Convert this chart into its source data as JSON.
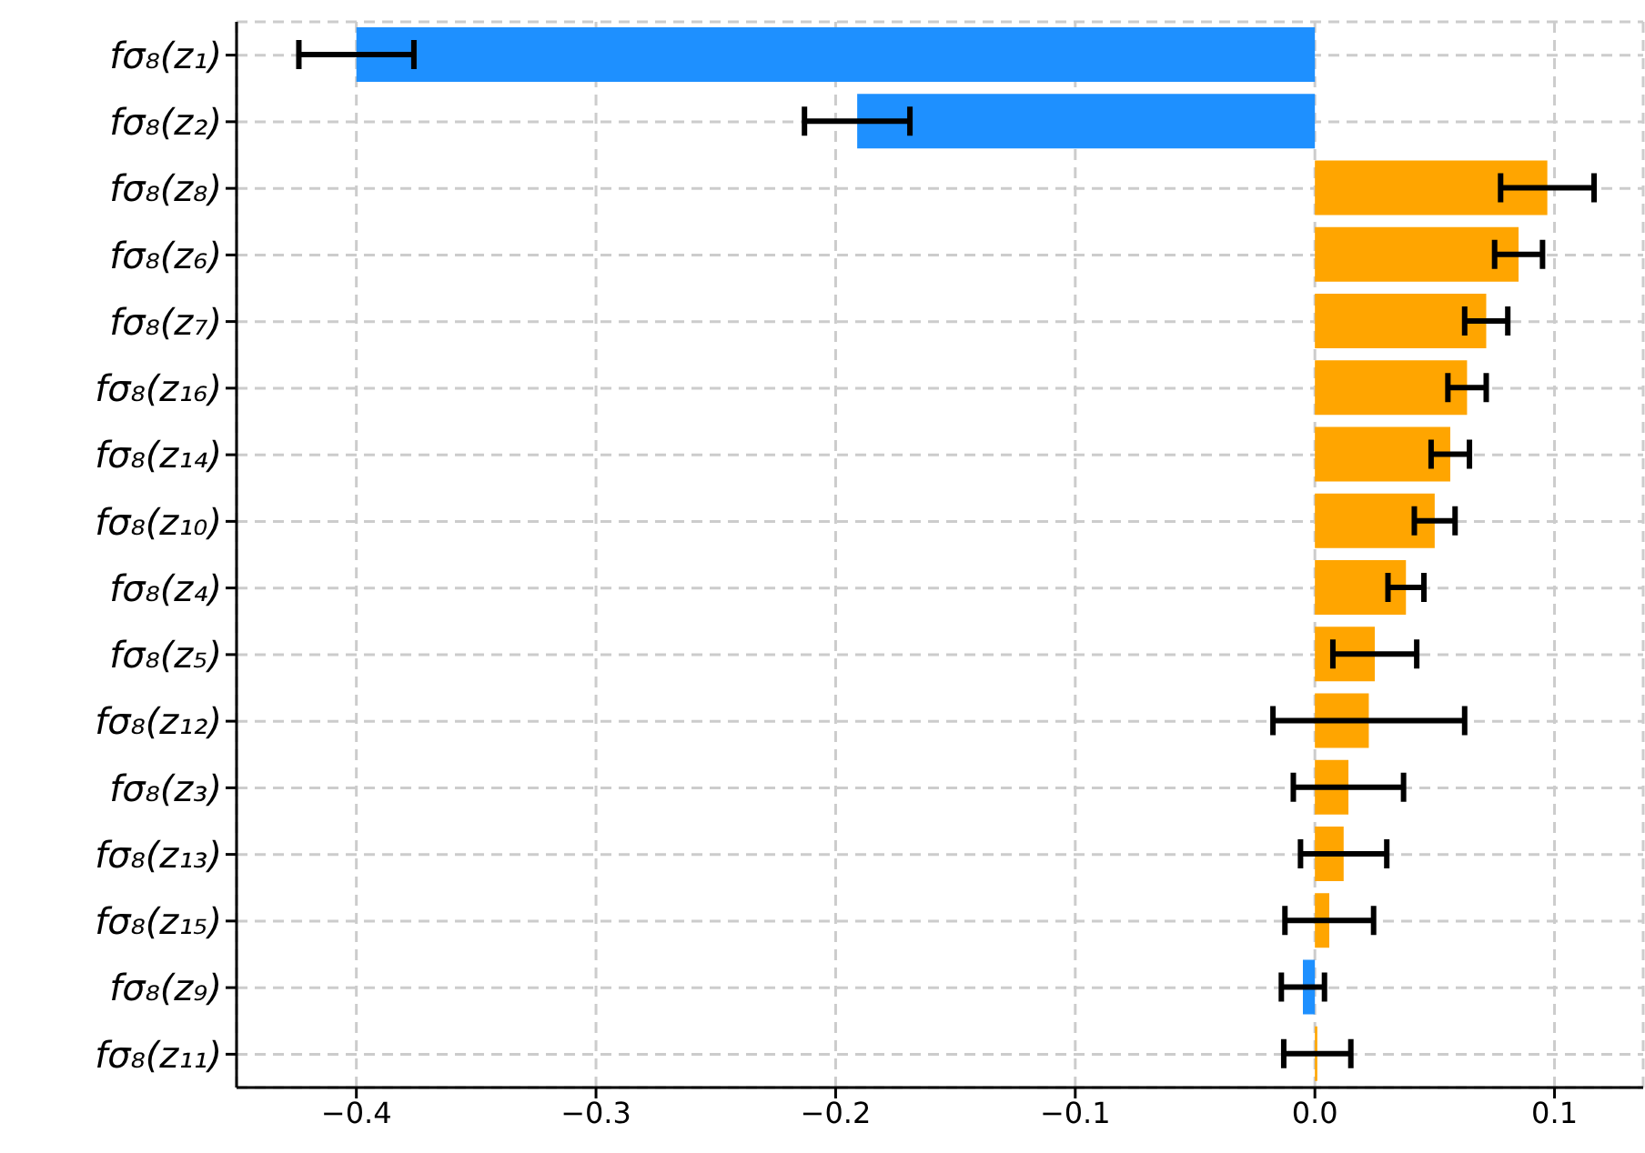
{
  "chart_data": {
    "type": "bar",
    "orientation": "horizontal",
    "categories": [
      "fσ₈(z₁)",
      "fσ₈(z₂)",
      "fσ₈(z₈)",
      "fσ₈(z₆)",
      "fσ₈(z₇)",
      "fσ₈(z₁₆)",
      "fσ₈(z₁₄)",
      "fσ₈(z₁₀)",
      "fσ₈(z₄)",
      "fσ₈(z₅)",
      "fσ₈(z₁₂)",
      "fσ₈(z₃)",
      "fσ₈(z₁₃)",
      "fσ₈(z₁₅)",
      "fσ₈(z₉)",
      "fσ₈(z₁₁)"
    ],
    "values": [
      -0.4,
      -0.191,
      0.097,
      0.085,
      0.0715,
      0.0635,
      0.0565,
      0.05,
      0.038,
      0.025,
      0.0225,
      0.014,
      0.012,
      0.006,
      -0.005,
      0.001
    ],
    "errors": [
      0.024,
      0.022,
      0.0195,
      0.01,
      0.009,
      0.008,
      0.008,
      0.0085,
      0.0075,
      0.0175,
      0.04,
      0.023,
      0.018,
      0.0185,
      0.009,
      0.014
    ],
    "colors": [
      "#1e90ff",
      "#1e90ff",
      "#ffa500",
      "#ffa500",
      "#ffa500",
      "#ffa500",
      "#ffa500",
      "#ffa500",
      "#ffa500",
      "#ffa500",
      "#ffa500",
      "#ffa500",
      "#ffa500",
      "#ffa500",
      "#1e90ff",
      "#ffa500"
    ],
    "xlim": [
      -0.45,
      0.137
    ],
    "xticks": [
      {
        "value": -0.4,
        "label": "−0.4"
      },
      {
        "value": -0.3,
        "label": "−0.3"
      },
      {
        "value": -0.2,
        "label": "−0.2"
      },
      {
        "value": -0.1,
        "label": "−0.1"
      },
      {
        "value": 0,
        "label": "0.0"
      },
      {
        "value": 0.1,
        "label": "0.1"
      }
    ],
    "grid": true
  }
}
